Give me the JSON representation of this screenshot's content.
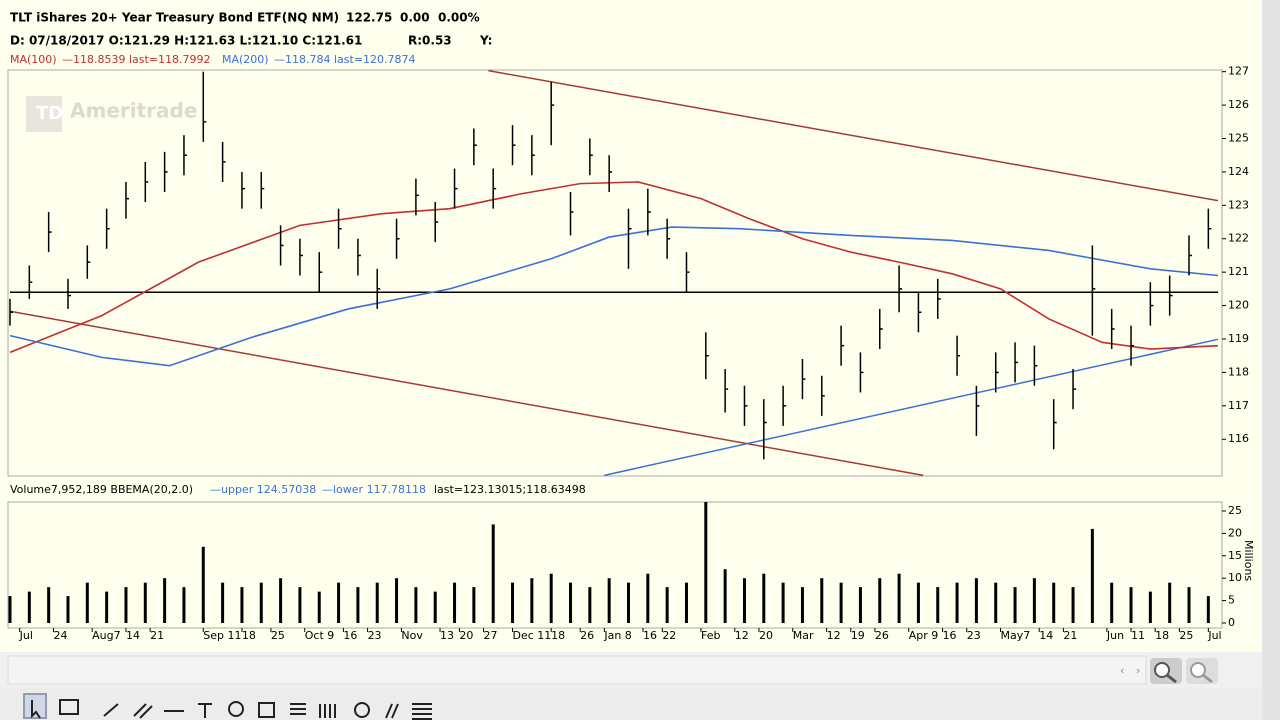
{
  "chart_data": {
    "type": "ohlc",
    "title": "TLT iShares 20+ Year Treasury Bond ETF(NQ NM)",
    "last": "122.75",
    "change": "0.00",
    "change_pct": "0.00%",
    "info_line": "D: 07/18/2017 O:121.29 H:121.63 L:121.10 C:121.61",
    "r_label": "R:0.53",
    "y_label": "Y:",
    "ma100_label": "MA(100)",
    "ma100_text": "—118.8539 last=118.7992",
    "ma200_label": "MA(200)",
    "ma200_text": "—118.784 last=120.7874",
    "volume_label": "Volume7,952,189 BBEMA(20,2.0)",
    "bb_upper": "—upper 124.57038",
    "bb_lower": "—lower 117.78118",
    "bb_last": "last=123.13015;118.63498",
    "volume_axis_label": "Millions",
    "watermark": "Ameritrade",
    "xlim": [
      0,
      250
    ],
    "xticks": [
      {
        "value": 2,
        "label": "Jul"
      },
      {
        "value": 9,
        "label": "24"
      },
      {
        "value": 17,
        "label": "Aug7"
      },
      {
        "value": 24,
        "label": "14"
      },
      {
        "value": 29,
        "label": "21"
      },
      {
        "value": 40,
        "label": "Sep 11"
      },
      {
        "value": 48,
        "label": "18"
      },
      {
        "value": 54,
        "label": "25"
      },
      {
        "value": 61,
        "label": "Oct 9"
      },
      {
        "value": 69,
        "label": "16"
      },
      {
        "value": 74,
        "label": "23"
      },
      {
        "value": 81,
        "label": "Nov"
      },
      {
        "value": 89,
        "label": "13"
      },
      {
        "value": 93,
        "label": "20"
      },
      {
        "value": 98,
        "label": "27"
      },
      {
        "value": 104,
        "label": "Dec 11"
      },
      {
        "value": 112,
        "label": "18"
      },
      {
        "value": 118,
        "label": "26"
      },
      {
        "value": 123,
        "label": "Jan 8"
      },
      {
        "value": 131,
        "label": "16"
      },
      {
        "value": 135,
        "label": "22"
      },
      {
        "value": 143,
        "label": "Feb"
      },
      {
        "value": 150,
        "label": "12"
      },
      {
        "value": 155,
        "label": "20"
      },
      {
        "value": 162,
        "label": "Mar"
      },
      {
        "value": 169,
        "label": "12"
      },
      {
        "value": 174,
        "label": "19"
      },
      {
        "value": 179,
        "label": "26"
      },
      {
        "value": 186,
        "label": "Apr 9"
      },
      {
        "value": 193,
        "label": "16"
      },
      {
        "value": 198,
        "label": "23"
      },
      {
        "value": 205,
        "label": "May7"
      },
      {
        "value": 213,
        "label": "14"
      },
      {
        "value": 218,
        "label": "21"
      },
      {
        "value": 227,
        "label": "Jun"
      },
      {
        "value": 232,
        "label": "11"
      },
      {
        "value": 237,
        "label": "18"
      },
      {
        "value": 242,
        "label": "25"
      },
      {
        "value": 248,
        "label": "Jul"
      }
    ],
    "ylim": [
      114.9,
      127.05
    ],
    "yticks": [
      116,
      117,
      118,
      119,
      120,
      121,
      122,
      123,
      124,
      125,
      126,
      127
    ],
    "x": [
      0,
      4,
      8,
      12,
      16,
      20,
      24,
      28,
      32,
      36,
      40,
      44,
      48,
      52,
      56,
      60,
      64,
      68,
      72,
      76,
      80,
      84,
      88,
      92,
      96,
      100,
      104,
      108,
      112,
      116,
      120,
      124,
      128,
      132,
      136,
      140,
      144,
      148,
      152,
      156,
      160,
      164,
      168,
      172,
      176,
      180,
      184,
      188,
      192,
      196,
      200,
      204,
      208,
      212,
      216,
      220,
      224,
      228,
      232,
      236,
      240,
      244,
      248
    ],
    "high": [
      120.2,
      121.2,
      122.8,
      120.8,
      121.8,
      122.9,
      123.7,
      124.3,
      124.6,
      125.1,
      127.0,
      124.9,
      124.0,
      124.0,
      122.4,
      122.0,
      121.6,
      122.9,
      122.0,
      121.1,
      122.6,
      123.8,
      123.1,
      124.1,
      125.3,
      124.1,
      125.4,
      125.1,
      126.7,
      123.4,
      125.0,
      124.5,
      122.9,
      123.5,
      122.6,
      121.6,
      119.2,
      118.1,
      117.6,
      117.2,
      117.6,
      118.4,
      117.9,
      119.4,
      118.6,
      119.9,
      121.2,
      120.4,
      120.8,
      119.1,
      117.6,
      118.6,
      118.9,
      118.8,
      117.2,
      118.1,
      121.8,
      119.9,
      119.4,
      120.7,
      120.9,
      122.1,
      122.9
    ],
    "low": [
      119.4,
      120.2,
      121.6,
      119.9,
      120.8,
      121.7,
      122.6,
      123.1,
      123.4,
      123.9,
      124.9,
      123.7,
      122.9,
      122.9,
      121.2,
      120.9,
      120.4,
      121.7,
      120.9,
      119.9,
      121.4,
      122.7,
      121.9,
      122.9,
      124.2,
      122.9,
      124.2,
      123.9,
      124.8,
      122.1,
      123.9,
      123.4,
      121.1,
      122.1,
      121.4,
      120.4,
      117.8,
      116.8,
      116.4,
      115.4,
      116.4,
      117.2,
      116.7,
      118.2,
      117.4,
      118.7,
      119.8,
      119.2,
      119.6,
      117.9,
      116.1,
      117.4,
      117.7,
      117.6,
      115.7,
      116.9,
      119.1,
      118.7,
      118.2,
      119.4,
      119.7,
      120.9,
      121.7
    ],
    "close": [
      119.8,
      120.7,
      122.2,
      120.3,
      121.3,
      122.3,
      123.2,
      123.7,
      124.0,
      124.5,
      125.5,
      124.3,
      123.5,
      123.5,
      121.8,
      121.5,
      121.0,
      122.3,
      121.5,
      120.5,
      122.0,
      123.3,
      122.5,
      123.5,
      124.8,
      123.5,
      124.8,
      124.5,
      126.0,
      122.8,
      124.5,
      124.0,
      122.3,
      122.8,
      122.0,
      121.0,
      118.5,
      117.5,
      117.0,
      116.5,
      117.0,
      117.8,
      117.3,
      118.8,
      118.0,
      119.3,
      120.5,
      119.8,
      120.2,
      118.5,
      117.0,
      118.0,
      118.3,
      118.2,
      116.5,
      117.5,
      120.5,
      119.3,
      118.8,
      120.0,
      120.3,
      121.5,
      122.3
    ],
    "bar_color": "#000000",
    "volume": [
      6,
      7,
      8,
      6,
      9,
      7,
      8,
      9,
      10,
      8,
      17,
      9,
      8,
      9,
      10,
      8,
      7,
      9,
      8,
      9,
      10,
      8,
      7,
      9,
      8,
      22,
      9,
      10,
      11,
      9,
      8,
      10,
      9,
      11,
      8,
      9,
      27,
      12,
      10,
      11,
      9,
      8,
      10,
      9,
      8,
      10,
      11,
      9,
      8,
      9,
      10,
      9,
      8,
      10,
      9,
      8,
      21,
      9,
      8,
      7,
      9,
      8,
      6
    ],
    "volume_color": "#000000",
    "volume_ylim": [
      0,
      27
    ],
    "volume_yticks": [
      0,
      5,
      10,
      15,
      20,
      25
    ],
    "lines": [
      {
        "name": "MA(100)",
        "color": "#c03030",
        "x": [
          0,
          19,
          39,
          60,
          77,
          91,
          106,
          118,
          130,
          143,
          153,
          164,
          174,
          184,
          195,
          205,
          215,
          226,
          236,
          250
        ],
        "values": [
          118.6,
          119.7,
          121.3,
          122.4,
          122.75,
          122.9,
          123.35,
          123.65,
          123.7,
          123.2,
          122.6,
          122.0,
          121.6,
          121.3,
          120.95,
          120.5,
          119.6,
          118.9,
          118.7,
          118.8
        ]
      },
      {
        "name": "MA(200)",
        "color": "#3a6fdc",
        "x": [
          0,
          19,
          33,
          50,
          70,
          91,
          112,
          124,
          137,
          151,
          174,
          195,
          215,
          236,
          250
        ],
        "values": [
          119.1,
          118.45,
          118.2,
          119.05,
          119.9,
          120.5,
          121.4,
          122.05,
          122.35,
          122.3,
          122.1,
          121.95,
          121.65,
          121.1,
          120.9
        ]
      }
    ],
    "trendlines": [
      {
        "color": "#a83838",
        "x": [
          99,
          250
        ],
        "values": [
          127.03,
          123.14
        ]
      },
      {
        "color": "#a83838",
        "x": [
          0,
          189
        ],
        "values": [
          119.83,
          114.92
        ]
      },
      {
        "color": "#3a6fdc",
        "x": [
          123,
          250
        ],
        "values": [
          114.92,
          118.99
        ]
      },
      {
        "color": "#000000",
        "x": [
          0,
          250
        ],
        "values": [
          120.4,
          120.4
        ]
      }
    ]
  }
}
